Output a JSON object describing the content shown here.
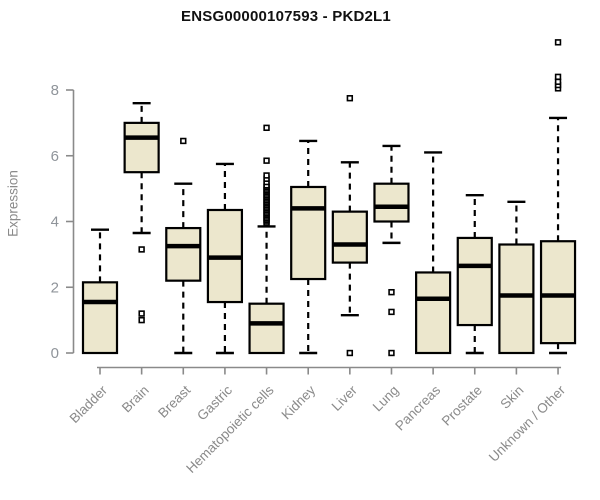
{
  "chart_data": {
    "type": "boxplot",
    "title": "ENSG00000107593 - PKD2L1",
    "ylabel": "Expression",
    "xlabel": "",
    "yticks": [
      0,
      2,
      4,
      6,
      8
    ],
    "ylim": [
      0,
      9.6
    ],
    "grid": false,
    "legend": false,
    "categories": [
      "Bladder",
      "Brain",
      "Breast",
      "Gastric",
      "Hematopoietic cells",
      "Kidney",
      "Liver",
      "Lung",
      "Pancreas",
      "Prostate",
      "Skin",
      "Unknown / Other"
    ],
    "series": [
      {
        "category": "Bladder",
        "whisker_low": 0,
        "q1": 0,
        "median": 1.55,
        "q3": 2.15,
        "whisker_high": 3.75,
        "outliers": []
      },
      {
        "category": "Brain",
        "whisker_low": 3.65,
        "q1": 5.5,
        "median": 6.55,
        "q3": 7.0,
        "whisker_high": 7.6,
        "outliers": [
          3.15,
          1.2,
          1.0
        ]
      },
      {
        "category": "Breast",
        "whisker_low": 0,
        "q1": 2.2,
        "median": 3.25,
        "q3": 3.8,
        "whisker_high": 5.15,
        "outliers": [
          6.45
        ]
      },
      {
        "category": "Gastric",
        "whisker_low": 0,
        "q1": 1.55,
        "median": 2.9,
        "q3": 4.35,
        "whisker_high": 5.75,
        "outliers": []
      },
      {
        "category": "Hematopoietic cells",
        "whisker_low": 0,
        "q1": 0,
        "median": 0.9,
        "q3": 1.5,
        "whisker_high": 3.85,
        "outliers": [
          3.95,
          4.0,
          4.05,
          4.1,
          4.15,
          4.2,
          4.25,
          4.3,
          4.35,
          4.4,
          4.45,
          4.5,
          4.55,
          4.6,
          4.65,
          4.7,
          4.75,
          4.8,
          4.85,
          4.9,
          4.95,
          5.0,
          5.05,
          5.1,
          5.2,
          5.3,
          5.4,
          5.85,
          6.85
        ]
      },
      {
        "category": "Kidney",
        "whisker_low": 0,
        "q1": 2.25,
        "median": 4.4,
        "q3": 5.05,
        "whisker_high": 6.45,
        "outliers": []
      },
      {
        "category": "Liver",
        "whisker_low": 1.15,
        "q1": 2.75,
        "median": 3.3,
        "q3": 4.3,
        "whisker_high": 5.8,
        "outliers": [
          7.75,
          0.0
        ]
      },
      {
        "category": "Lung",
        "whisker_low": 3.35,
        "q1": 4.0,
        "median": 4.45,
        "q3": 5.15,
        "whisker_high": 6.3,
        "outliers": [
          1.85,
          1.25,
          0.0
        ]
      },
      {
        "category": "Pancreas",
        "whisker_low": 0,
        "q1": 0,
        "median": 1.65,
        "q3": 2.45,
        "whisker_high": 6.1,
        "outliers": []
      },
      {
        "category": "Prostate",
        "whisker_low": 0,
        "q1": 0.85,
        "median": 2.65,
        "q3": 3.5,
        "whisker_high": 4.8,
        "outliers": []
      },
      {
        "category": "Skin",
        "whisker_low": 0,
        "q1": 0,
        "median": 1.75,
        "q3": 3.3,
        "whisker_high": 4.6,
        "outliers": []
      },
      {
        "category": "Unknown / Other",
        "whisker_low": 0,
        "q1": 0.3,
        "median": 1.75,
        "q3": 3.4,
        "whisker_high": 7.15,
        "outliers": [
          8.05,
          8.15,
          8.25,
          8.4,
          9.45
        ]
      }
    ],
    "colors": {
      "box_fill": "#ece7cd",
      "box_border": "#000000",
      "median": "#000000",
      "axis": "#8a8a8a",
      "tick_label": "#8a8a8a",
      "title": "#111111",
      "background": "#ffffff"
    }
  }
}
